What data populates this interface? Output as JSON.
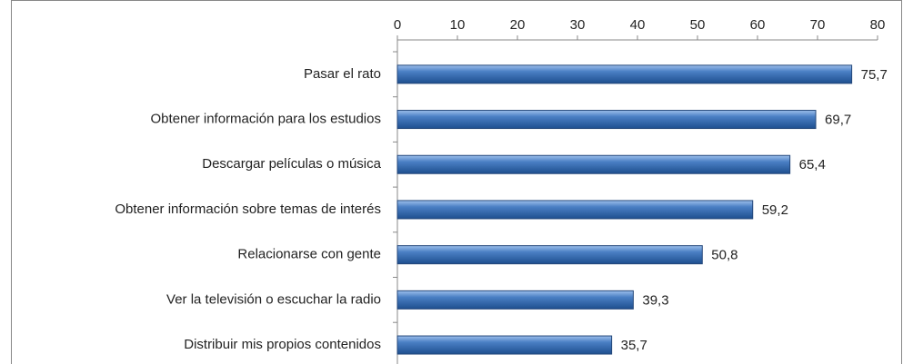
{
  "chart_data": {
    "type": "bar",
    "orientation": "horizontal",
    "categories": [
      "Pasar el rato",
      "Obtener información para los estudios",
      "Descargar películas o música",
      "Obtener información sobre temas de interés",
      "Relacionarse con gente",
      "Ver la televisión o escuchar la radio",
      "Distribuir mis propios contenidos"
    ],
    "values": [
      75.7,
      69.7,
      65.4,
      59.2,
      50.8,
      39.3,
      35.7
    ],
    "value_labels": [
      "75,7",
      "69,7",
      "65,4",
      "59,2",
      "50,8",
      "39,3",
      "35,7"
    ],
    "color": "#3d6fb0",
    "xlim": [
      0,
      80
    ],
    "xticks": [
      0,
      10,
      20,
      30,
      40,
      50,
      60,
      70,
      80
    ]
  }
}
